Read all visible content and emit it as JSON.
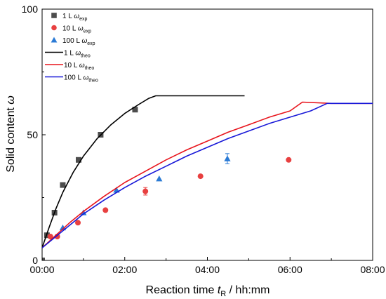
{
  "chart_data": {
    "type": "scatter",
    "xlabel": {
      "main": "Reaction time ",
      "var": "t",
      "sub": "R",
      "unit": " / hh:mm"
    },
    "ylabel": {
      "main": "Solid content ",
      "var": "ω"
    },
    "xlim": [
      0,
      480
    ],
    "ylim": [
      0,
      100
    ],
    "x_ticks": [
      {
        "value": 0,
        "label": "00:00"
      },
      {
        "value": 120,
        "label": "02:00"
      },
      {
        "value": 240,
        "label": "04:00"
      },
      {
        "value": 360,
        "label": "06:00"
      },
      {
        "value": 480,
        "label": "08:00"
      }
    ],
    "y_ticks": [
      {
        "value": 0,
        "label": "0"
      },
      {
        "value": 50,
        "label": "50"
      },
      {
        "value": 100,
        "label": "100"
      }
    ],
    "legend_position": "top-left",
    "grid": false,
    "series": [
      {
        "legend": {
          "main": "1 L ",
          "var": "ω",
          "sub": "exp"
        },
        "kind": "scatter",
        "marker": "square",
        "color": "#4d4d4d",
        "points": [
          [
            0,
            0
          ],
          [
            7,
            10
          ],
          [
            18,
            19
          ],
          [
            30,
            30
          ],
          [
            53,
            40
          ],
          [
            85,
            50
          ],
          [
            135,
            60
          ]
        ]
      },
      {
        "legend": {
          "main": "10 L ",
          "var": "ω",
          "sub": "exp"
        },
        "kind": "scatter",
        "marker": "circle",
        "color": "#e84040",
        "points": [
          [
            12,
            9.5
          ],
          [
            22,
            9.5
          ],
          [
            52,
            15
          ],
          [
            92,
            20
          ],
          [
            150,
            27.5
          ],
          [
            230,
            33.5
          ],
          [
            358,
            40
          ]
        ],
        "error": [
          0,
          0,
          0,
          0,
          1.5,
          0,
          0
        ]
      },
      {
        "legend": {
          "main": "100 L ",
          "var": "ω",
          "sub": "exp"
        },
        "kind": "scatter",
        "marker": "triangle",
        "color": "#2a7ad5",
        "points": [
          [
            30,
            13
          ],
          [
            60,
            19
          ],
          [
            108,
            28
          ],
          [
            170,
            32.5
          ],
          [
            269,
            40.5
          ]
        ],
        "error": [
          0,
          0,
          0,
          0,
          2
        ]
      },
      {
        "legend": {
          "main": "1 L ",
          "var": "ω",
          "sub": "theo"
        },
        "kind": "line",
        "color": "#000000",
        "points": [
          [
            0,
            5
          ],
          [
            10,
            13
          ],
          [
            20,
            20.5
          ],
          [
            30,
            27
          ],
          [
            45,
            35
          ],
          [
            60,
            41.5
          ],
          [
            80,
            48.5
          ],
          [
            100,
            54
          ],
          [
            120,
            58.5
          ],
          [
            140,
            62
          ],
          [
            155,
            64.5
          ],
          [
            165,
            65.5
          ],
          [
            180,
            65.5
          ],
          [
            294,
            65.5
          ]
        ]
      },
      {
        "legend": {
          "main": "10 L ",
          "var": "ω",
          "sub": "theo"
        },
        "kind": "line",
        "color": "#e8141c",
        "points": [
          [
            0,
            5
          ],
          [
            20,
            10
          ],
          [
            40,
            15
          ],
          [
            60,
            19.5
          ],
          [
            90,
            25.5
          ],
          [
            120,
            31
          ],
          [
            150,
            35.5
          ],
          [
            180,
            40
          ],
          [
            210,
            44
          ],
          [
            240,
            47.5
          ],
          [
            270,
            51
          ],
          [
            300,
            54
          ],
          [
            330,
            57
          ],
          [
            360,
            59.5
          ],
          [
            378,
            63
          ],
          [
            420,
            62.5
          ],
          [
            480,
            62.5
          ]
        ]
      },
      {
        "legend": {
          "main": "100 L ",
          "var": "ω",
          "sub": "theo"
        },
        "kind": "line",
        "color": "#1818d8",
        "points": [
          [
            0,
            5
          ],
          [
            20,
            9.5
          ],
          [
            40,
            14
          ],
          [
            60,
            18.5
          ],
          [
            90,
            24
          ],
          [
            120,
            29
          ],
          [
            150,
            33.5
          ],
          [
            180,
            37.5
          ],
          [
            210,
            41.5
          ],
          [
            240,
            45
          ],
          [
            270,
            48.5
          ],
          [
            300,
            51.5
          ],
          [
            330,
            54.5
          ],
          [
            360,
            57
          ],
          [
            390,
            59.5
          ],
          [
            414,
            62.5
          ],
          [
            480,
            62.5
          ]
        ]
      }
    ]
  }
}
